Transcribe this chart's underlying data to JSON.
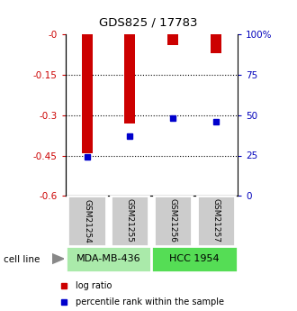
{
  "title": "GDS825 / 17783",
  "samples": [
    "GSM21254",
    "GSM21255",
    "GSM21256",
    "GSM21257"
  ],
  "log_ratio": [
    -0.44,
    -0.33,
    -0.04,
    -0.07
  ],
  "percentile": [
    24,
    37,
    48,
    46
  ],
  "ylim_left": [
    -0.6,
    0
  ],
  "ylim_right": [
    0,
    100
  ],
  "yticks_left": [
    0,
    -0.15,
    -0.3,
    -0.45,
    -0.6
  ],
  "ytick_labels_left": [
    "-0",
    "-0.15",
    "-0.3",
    "-0.45",
    "-0.6"
  ],
  "yticks_right": [
    0,
    25,
    50,
    75,
    100
  ],
  "ytick_labels_right": [
    "0",
    "25",
    "50",
    "75",
    "100%"
  ],
  "cell_lines": [
    {
      "label": "MDA-MB-436",
      "samples": [
        0,
        1
      ],
      "color": "#aaeaaa"
    },
    {
      "label": "HCC 1954",
      "samples": [
        2,
        3
      ],
      "color": "#55dd55"
    }
  ],
  "bar_color": "#cc0000",
  "percentile_color": "#0000cc",
  "bar_width": 0.25,
  "background_color": "#ffffff",
  "sample_box_color": "#cccccc",
  "title_color": "#000000",
  "left_axis_color": "#cc0000",
  "right_axis_color": "#0000bb"
}
